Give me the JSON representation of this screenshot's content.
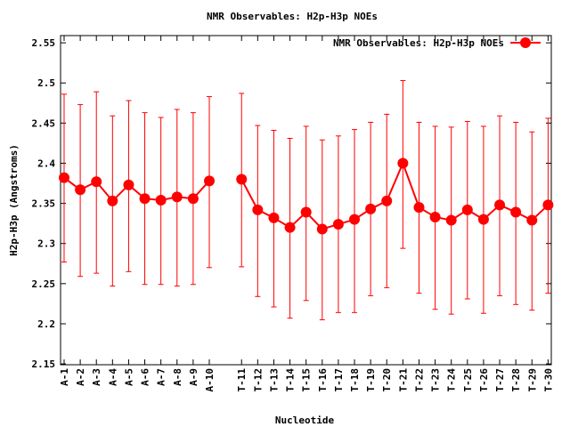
{
  "chart_data": {
    "type": "line",
    "title": "NMR Observables: H2p-H3p NOEs",
    "xlabel": "Nucleotide",
    "ylabel": "H2p-H3p (Angstroms)",
    "ylim": [
      2.149,
      2.559
    ],
    "yticks": [
      "2.15",
      "2.2",
      "2.25",
      "2.3",
      "2.35",
      "2.4",
      "2.45",
      "2.5",
      "2.55"
    ],
    "grid": false,
    "legend": {
      "placement": "top-right",
      "label": "NMR Observables: H2p-H3p NOEs"
    },
    "series_color": "#ff0000",
    "points": [
      {
        "label": "A-1",
        "pos": 1,
        "y": 2.382,
        "lo": 2.277,
        "hi": 2.486
      },
      {
        "label": "A-2",
        "pos": 2,
        "y": 2.367,
        "lo": 2.259,
        "hi": 2.473
      },
      {
        "label": "A-3",
        "pos": 3,
        "y": 2.377,
        "lo": 2.263,
        "hi": 2.489
      },
      {
        "label": "A-4",
        "pos": 4,
        "y": 2.353,
        "lo": 2.247,
        "hi": 2.459
      },
      {
        "label": "A-5",
        "pos": 5,
        "y": 2.373,
        "lo": 2.265,
        "hi": 2.478
      },
      {
        "label": "A-6",
        "pos": 6,
        "y": 2.356,
        "lo": 2.249,
        "hi": 2.463
      },
      {
        "label": "A-7",
        "pos": 7,
        "y": 2.354,
        "lo": 2.249,
        "hi": 2.457
      },
      {
        "label": "A-8",
        "pos": 8,
        "y": 2.358,
        "lo": 2.247,
        "hi": 2.467
      },
      {
        "label": "A-9",
        "pos": 9,
        "y": 2.356,
        "lo": 2.249,
        "hi": 2.463
      },
      {
        "label": "A-10",
        "pos": 10,
        "y": 2.378,
        "lo": 2.27,
        "hi": 2.483
      },
      {
        "label": "T-11",
        "pos": 12,
        "y": 2.38,
        "lo": 2.271,
        "hi": 2.487
      },
      {
        "label": "T-12",
        "pos": 13,
        "y": 2.342,
        "lo": 2.234,
        "hi": 2.447
      },
      {
        "label": "T-13",
        "pos": 14,
        "y": 2.332,
        "lo": 2.221,
        "hi": 2.441
      },
      {
        "label": "T-14",
        "pos": 15,
        "y": 2.32,
        "lo": 2.207,
        "hi": 2.431
      },
      {
        "label": "T-15",
        "pos": 16,
        "y": 2.339,
        "lo": 2.229,
        "hi": 2.446
      },
      {
        "label": "T-16",
        "pos": 17,
        "y": 2.318,
        "lo": 2.205,
        "hi": 2.429
      },
      {
        "label": "T-17",
        "pos": 18,
        "y": 2.324,
        "lo": 2.214,
        "hi": 2.434
      },
      {
        "label": "T-18",
        "pos": 19,
        "y": 2.33,
        "lo": 2.214,
        "hi": 2.442
      },
      {
        "label": "T-19",
        "pos": 20,
        "y": 2.343,
        "lo": 2.235,
        "hi": 2.451
      },
      {
        "label": "T-20",
        "pos": 21,
        "y": 2.353,
        "lo": 2.245,
        "hi": 2.461
      },
      {
        "label": "T-21",
        "pos": 22,
        "y": 2.4,
        "lo": 2.294,
        "hi": 2.503
      },
      {
        "label": "T-22",
        "pos": 23,
        "y": 2.345,
        "lo": 2.238,
        "hi": 2.451
      },
      {
        "label": "T-23",
        "pos": 24,
        "y": 2.333,
        "lo": 2.218,
        "hi": 2.446
      },
      {
        "label": "T-24",
        "pos": 25,
        "y": 2.329,
        "lo": 2.212,
        "hi": 2.445
      },
      {
        "label": "T-25",
        "pos": 26,
        "y": 2.342,
        "lo": 2.231,
        "hi": 2.452
      },
      {
        "label": "T-26",
        "pos": 27,
        "y": 2.33,
        "lo": 2.213,
        "hi": 2.446
      },
      {
        "label": "T-27",
        "pos": 28,
        "y": 2.348,
        "lo": 2.235,
        "hi": 2.459
      },
      {
        "label": "T-28",
        "pos": 29,
        "y": 2.339,
        "lo": 2.224,
        "hi": 2.451
      },
      {
        "label": "T-29",
        "pos": 30,
        "y": 2.329,
        "lo": 2.217,
        "hi": 2.439
      },
      {
        "label": "T-30",
        "pos": 31,
        "y": 2.348,
        "lo": 2.238,
        "hi": 2.456
      }
    ]
  }
}
